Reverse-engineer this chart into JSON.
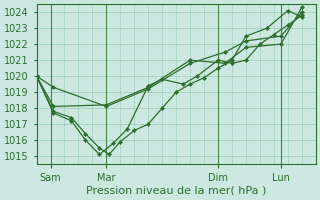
{
  "title": "Pression niveau de la mer( hPa )",
  "background_color": "#cce8e0",
  "grid_color": "#99ccbb",
  "line_color": "#2d6e2d",
  "marker_color": "#2d6e2d",
  "ylim": [
    1014.5,
    1024.5
  ],
  "yticks": [
    1015,
    1016,
    1017,
    1018,
    1019,
    1020,
    1021,
    1022,
    1023,
    1024
  ],
  "xlim": [
    0,
    20
  ],
  "xtick_positions": [
    1.0,
    5.0,
    13.0,
    17.5
  ],
  "xtick_labels": [
    "Sam",
    "Mar",
    "Dim",
    "Lun"
  ],
  "vlines_x": [
    1.0,
    5.0,
    13.0,
    17.5
  ],
  "series1": [
    [
      0.0,
      1020.0
    ],
    [
      1.2,
      1019.3
    ],
    [
      5.0,
      1018.1
    ],
    [
      8.0,
      1019.2
    ],
    [
      11.0,
      1020.8
    ],
    [
      13.5,
      1021.5
    ],
    [
      15.0,
      1022.2
    ],
    [
      17.5,
      1022.5
    ],
    [
      19.0,
      1024.0
    ]
  ],
  "series2": [
    [
      0.0,
      1020.0
    ],
    [
      1.2,
      1017.8
    ],
    [
      2.5,
      1017.4
    ],
    [
      3.5,
      1016.4
    ],
    [
      4.5,
      1015.5
    ],
    [
      5.2,
      1015.1
    ],
    [
      6.0,
      1015.9
    ],
    [
      7.0,
      1016.6
    ],
    [
      8.0,
      1017.0
    ],
    [
      9.0,
      1018.0
    ],
    [
      10.0,
      1019.0
    ],
    [
      11.0,
      1019.5
    ],
    [
      12.0,
      1019.9
    ],
    [
      13.0,
      1020.5
    ],
    [
      14.0,
      1021.0
    ],
    [
      15.0,
      1022.5
    ],
    [
      16.5,
      1023.0
    ],
    [
      18.0,
      1024.1
    ],
    [
      19.0,
      1023.7
    ]
  ],
  "series3": [
    [
      0.0,
      1020.0
    ],
    [
      1.2,
      1017.7
    ],
    [
      2.5,
      1017.2
    ],
    [
      3.5,
      1016.0
    ],
    [
      4.5,
      1015.1
    ],
    [
      5.5,
      1015.8
    ],
    [
      6.5,
      1016.7
    ],
    [
      8.0,
      1019.4
    ],
    [
      9.0,
      1019.8
    ],
    [
      10.5,
      1019.5
    ],
    [
      11.5,
      1020.0
    ],
    [
      13.0,
      1021.0
    ],
    [
      14.0,
      1020.8
    ],
    [
      15.0,
      1021.0
    ],
    [
      16.0,
      1022.0
    ],
    [
      17.0,
      1022.6
    ],
    [
      18.0,
      1023.2
    ],
    [
      19.0,
      1023.8
    ]
  ],
  "series4": [
    [
      0.0,
      1020.0
    ],
    [
      1.2,
      1018.1
    ],
    [
      5.0,
      1018.2
    ],
    [
      8.0,
      1019.3
    ],
    [
      11.0,
      1021.0
    ],
    [
      13.5,
      1020.8
    ],
    [
      15.0,
      1021.8
    ],
    [
      17.5,
      1022.0
    ],
    [
      19.0,
      1024.3
    ]
  ],
  "minor_grid_step": 1
}
